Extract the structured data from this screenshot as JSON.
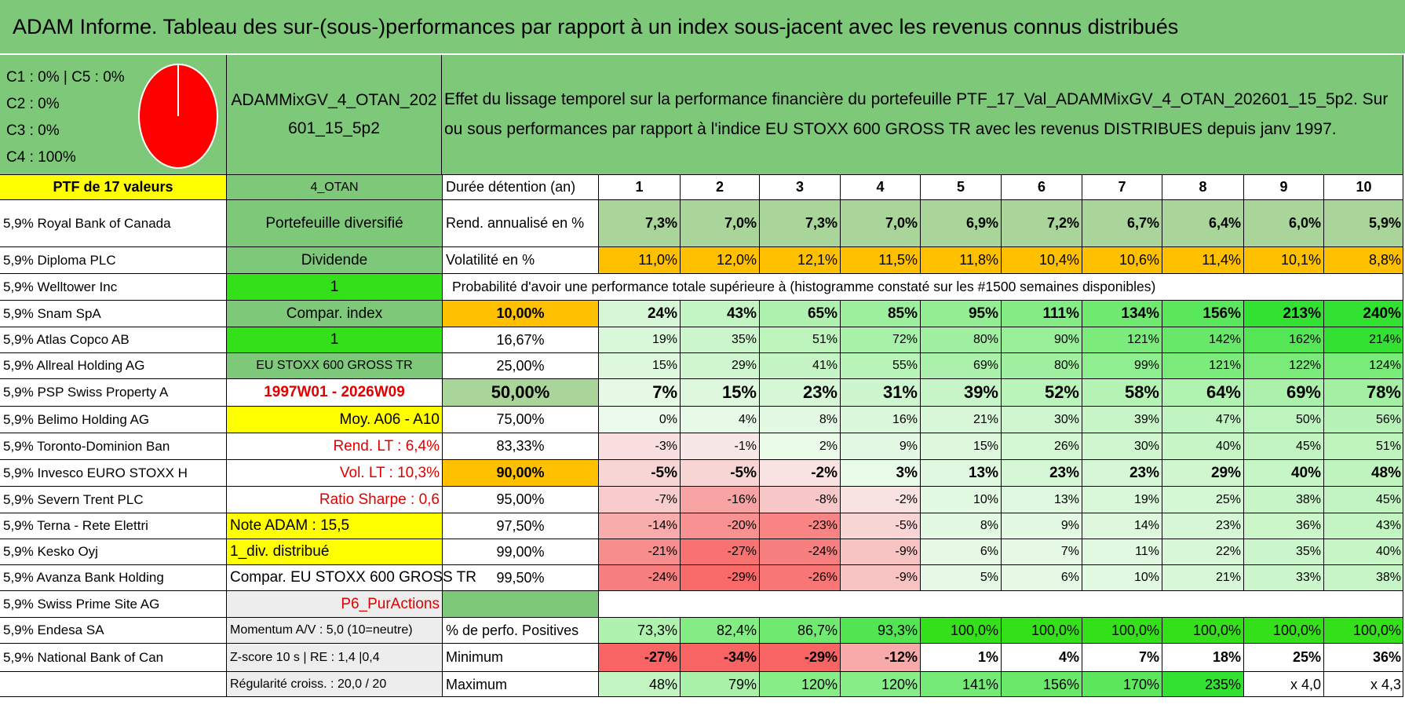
{
  "title": "ADAM Informe. Tableau des sur-(sous-)performances par rapport à un index sous-jacent avec les revenus connus distribués",
  "header": {
    "categories": [
      "C1 : 0% | C5 : 0%",
      "C2 : 0%",
      "C3 : 0%",
      "C4 : 100%"
    ],
    "pie": [
      0,
      0,
      0,
      1,
      0
    ],
    "pie_color": "#ff0000",
    "portfolio_name": "ADAMMixGV_4_OTAN_202601_15_5p2",
    "description_line1": "Effet du lissage temporel sur la performance financière du portefeuille PTF_17_Val_ADAMMixGV_4_OTAN_202601_15_5p2. Sur",
    "description_line2": "ou sous performances par rapport à l'indice EU STOXX 600 GROSS TR avec les revenus DISTRIBUES depuis janv 1997."
  },
  "ptf_label": "PTF de 17 valeurs",
  "holdings": [
    "5,9% Royal Bank of Canada",
    "5,9% Diploma PLC",
    "5,9% Welltower Inc",
    "5,9% Snam SpA",
    "5,9% Atlas Copco AB",
    "5,9% Allreal Holding AG",
    "5,9% PSP Swiss Property A",
    "5,9% Belimo Holding AG",
    "5,9% Toronto-Dominion Ban",
    "5,9% Invesco EURO STOXX H",
    "5,9% Severn Trent PLC",
    "5,9% Terna - Rete Elettri",
    "5,9% Kesko Oyj",
    "5,9% Avanza Bank Holding",
    "5,9% Swiss Prime Site AG",
    "5,9% Endesa SA",
    "5,9% National Bank of Can",
    ""
  ],
  "info": [
    "4_OTAN",
    "Portefeuille diversifié",
    "Dividende",
    "1",
    "Compar. index",
    "1",
    "EU STOXX 600 GROSS TR",
    "1997W01 - 2026W09",
    "Moy. A06 - A10",
    "Rend. LT : 6,4%",
    "Vol. LT : 10,3%",
    "Ratio Sharpe : 0,6",
    "Note ADAM : 15,5",
    "1_div. distribué",
    "Compar. EU STOXX 600 GROSS TR",
    "P6_PurActions",
    "Momentum A/V : 5,0 (10=neutre)",
    "Z-score 10 s | RE : 1,4 |0,4",
    "Régularité croiss. : 20,0 / 20"
  ],
  "metrics": {
    "duration_label": "Durée détention (an)",
    "years": [
      "1",
      "2",
      "3",
      "4",
      "5",
      "6",
      "7",
      "8",
      "9",
      "10"
    ],
    "return_label": "Rend. annualisé en %",
    "returns": [
      "7,3%",
      "7,0%",
      "7,3%",
      "7,0%",
      "6,9%",
      "7,2%",
      "6,7%",
      "6,4%",
      "6,0%",
      "5,9%"
    ],
    "vol_label": "Volatilité en %",
    "vols": [
      "11,0%",
      "12,0%",
      "12,1%",
      "11,5%",
      "11,8%",
      "10,4%",
      "10,6%",
      "11,4%",
      "10,1%",
      "8,8%"
    ],
    "prob_label": "Probabilité d'avoir une performance totale supérieure à (histogramme constaté sur les #1500 semaines disponibles)"
  },
  "probability_rows": [
    {
      "p": "10,00%",
      "v": [
        "24%",
        "43%",
        "65%",
        "85%",
        "95%",
        "111%",
        "134%",
        "156%",
        "213%",
        "240%"
      ]
    },
    {
      "p": "16,67%",
      "v": [
        "19%",
        "35%",
        "51%",
        "72%",
        "80%",
        "90%",
        "121%",
        "142%",
        "162%",
        "214%"
      ]
    },
    {
      "p": "25,00%",
      "v": [
        "15%",
        "29%",
        "41%",
        "55%",
        "69%",
        "80%",
        "99%",
        "121%",
        "122%",
        "124%"
      ]
    },
    {
      "p": "50,00%",
      "v": [
        "7%",
        "15%",
        "23%",
        "31%",
        "39%",
        "52%",
        "58%",
        "64%",
        "69%",
        "78%"
      ]
    },
    {
      "p": "75,00%",
      "v": [
        "0%",
        "4%",
        "8%",
        "16%",
        "21%",
        "30%",
        "39%",
        "47%",
        "50%",
        "56%"
      ]
    },
    {
      "p": "83,33%",
      "v": [
        "-3%",
        "-1%",
        "2%",
        "9%",
        "15%",
        "26%",
        "30%",
        "40%",
        "45%",
        "51%"
      ]
    },
    {
      "p": "90,00%",
      "v": [
        "-5%",
        "-5%",
        "-2%",
        "3%",
        "13%",
        "23%",
        "23%",
        "29%",
        "40%",
        "48%"
      ]
    },
    {
      "p": "95,00%",
      "v": [
        "-7%",
        "-16%",
        "-8%",
        "-2%",
        "10%",
        "13%",
        "19%",
        "25%",
        "38%",
        "45%"
      ]
    },
    {
      "p": "97,50%",
      "v": [
        "-14%",
        "-20%",
        "-23%",
        "-5%",
        "8%",
        "9%",
        "14%",
        "23%",
        "36%",
        "43%"
      ]
    },
    {
      "p": "99,00%",
      "v": [
        "-21%",
        "-27%",
        "-24%",
        "-9%",
        "6%",
        "7%",
        "11%",
        "22%",
        "35%",
        "40%"
      ]
    },
    {
      "p": "99,50%",
      "v": [
        "-24%",
        "-29%",
        "-26%",
        "-9%",
        "5%",
        "6%",
        "10%",
        "21%",
        "33%",
        "38%"
      ]
    }
  ],
  "probability_numeric": [
    [
      24,
      43,
      65,
      85,
      95,
      111,
      134,
      156,
      213,
      240
    ],
    [
      19,
      35,
      51,
      72,
      80,
      90,
      121,
      142,
      162,
      214
    ],
    [
      15,
      29,
      41,
      55,
      69,
      80,
      99,
      121,
      122,
      124
    ],
    [
      7,
      15,
      23,
      31,
      39,
      52,
      58,
      64,
      69,
      78
    ],
    [
      0,
      4,
      8,
      16,
      21,
      30,
      39,
      47,
      50,
      56
    ],
    [
      -3,
      -1,
      2,
      9,
      15,
      26,
      30,
      40,
      45,
      51
    ],
    [
      -5,
      -5,
      -2,
      3,
      13,
      23,
      23,
      29,
      40,
      48
    ],
    [
      -7,
      -16,
      -8,
      -2,
      10,
      13,
      19,
      25,
      38,
      45
    ],
    [
      -14,
      -20,
      -23,
      -5,
      8,
      9,
      14,
      23,
      36,
      43
    ],
    [
      -21,
      -27,
      -24,
      -9,
      6,
      7,
      11,
      22,
      35,
      40
    ],
    [
      -24,
      -29,
      -26,
      -9,
      5,
      6,
      10,
      21,
      33,
      38
    ]
  ],
  "stats": [
    {
      "label": "% de perfo. Positives",
      "v": [
        "73,3%",
        "82,4%",
        "86,7%",
        "93,3%",
        "100,0%",
        "100,0%",
        "100,0%",
        "100,0%",
        "100,0%",
        "100,0%"
      ],
      "n": [
        73.3,
        82.4,
        86.7,
        93.3,
        100,
        100,
        100,
        100,
        100,
        100
      ]
    },
    {
      "label": "Minimum",
      "v": [
        "-27%",
        "-34%",
        "-29%",
        "-12%",
        "1%",
        "4%",
        "7%",
        "18%",
        "25%",
        "36%"
      ],
      "n": [
        -27,
        -34,
        -29,
        -12,
        1,
        4,
        7,
        18,
        25,
        36
      ]
    },
    {
      "label": "Maximum",
      "v": [
        "48%",
        "79%",
        "120%",
        "120%",
        "141%",
        "156%",
        "170%",
        "235%",
        "x 4,0",
        "x 4,3"
      ],
      "n": [
        48,
        79,
        120,
        120,
        141,
        156,
        170,
        235,
        null,
        null
      ]
    }
  ],
  "colors": {
    "header_green": "#7ec87a",
    "yellow": "#ffff00",
    "orange": "#ffc000",
    "bright_green": "#33e019",
    "red_text": "#e00000"
  }
}
